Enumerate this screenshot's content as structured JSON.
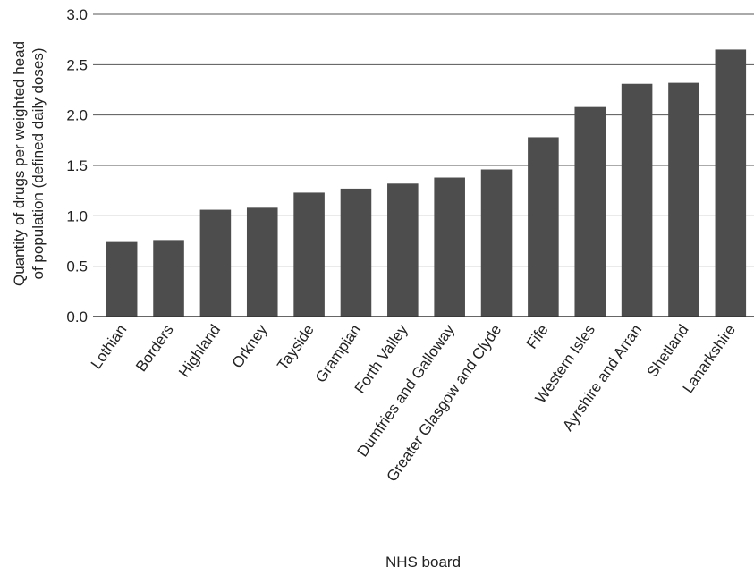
{
  "chart_data": {
    "type": "bar",
    "xlabel": "NHS board",
    "ylabel_lines": [
      "Quantity of drugs per weighted head",
      "of population (defined daily doses)"
    ],
    "categories": [
      "Lothian",
      "Borders",
      "Highland",
      "Orkney",
      "Tayside",
      "Grampian",
      "Forth Valley",
      "Dumfries and Galloway",
      "Greater Glasgow and Clyde",
      "Fife",
      "Western Isles",
      "Ayrshire and Arran",
      "Shetland",
      "Lanarkshire"
    ],
    "values": [
      0.74,
      0.76,
      1.06,
      1.08,
      1.23,
      1.27,
      1.32,
      1.38,
      1.46,
      1.78,
      2.08,
      2.31,
      2.32,
      2.65
    ],
    "ylim": [
      0,
      3.0
    ],
    "yticks": [
      "0.0",
      "0.5",
      "1.0",
      "1.5",
      "2.0",
      "2.5",
      "3.0"
    ],
    "grid": true,
    "bar_color": "#4d4d4d",
    "grid_color": "#555555"
  }
}
